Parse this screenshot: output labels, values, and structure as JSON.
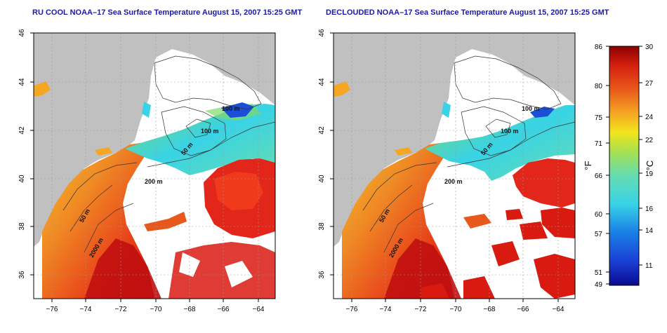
{
  "panels": [
    {
      "title": "RU COOL NOAA–17 Sea Surface Temperature August 15, 2007 15:25 GMT",
      "contour_labels": [
        "100 m",
        "100 m",
        "50 m",
        "200 m",
        "50 m",
        "2000 m"
      ]
    },
    {
      "title": "DECLOUDED NOAA–17 Sea Surface Temperature August 15, 2007 15:25 GMT",
      "contour_labels": [
        "100 m",
        "100 m",
        "50 m",
        "200 m",
        "50 m",
        "2000 m"
      ]
    }
  ],
  "axes": {
    "x_ticks": [
      "−76",
      "−74",
      "−72",
      "−70",
      "−68",
      "−66",
      "−64"
    ],
    "y_ticks": [
      "46",
      "44",
      "42",
      "40",
      "38",
      "36"
    ]
  },
  "colorbar": {
    "fahrenheit_label": "°F",
    "celsius_label": "°C",
    "fahrenheit_ticks": [
      "86",
      "80",
      "75",
      "71",
      "66",
      "60",
      "57",
      "51",
      "49"
    ],
    "celsius_ticks": [
      "30",
      "27",
      "24",
      "22",
      "19",
      "16",
      "14",
      "11"
    ],
    "range_f": [
      49,
      86
    ],
    "range_c": [
      9.4,
      30
    ]
  },
  "colors": {
    "land": "#c0c0c0",
    "cloud": "#ffffff",
    "title": "#1a1aa6",
    "warm_dark": "#8b0000",
    "warm": "#e83a14",
    "orange": "#f5a623",
    "yellow": "#f2e51c",
    "green": "#7fd86a",
    "cyan": "#38d3e6",
    "blue": "#1a4fd6",
    "navy": "#0b0b8f"
  }
}
